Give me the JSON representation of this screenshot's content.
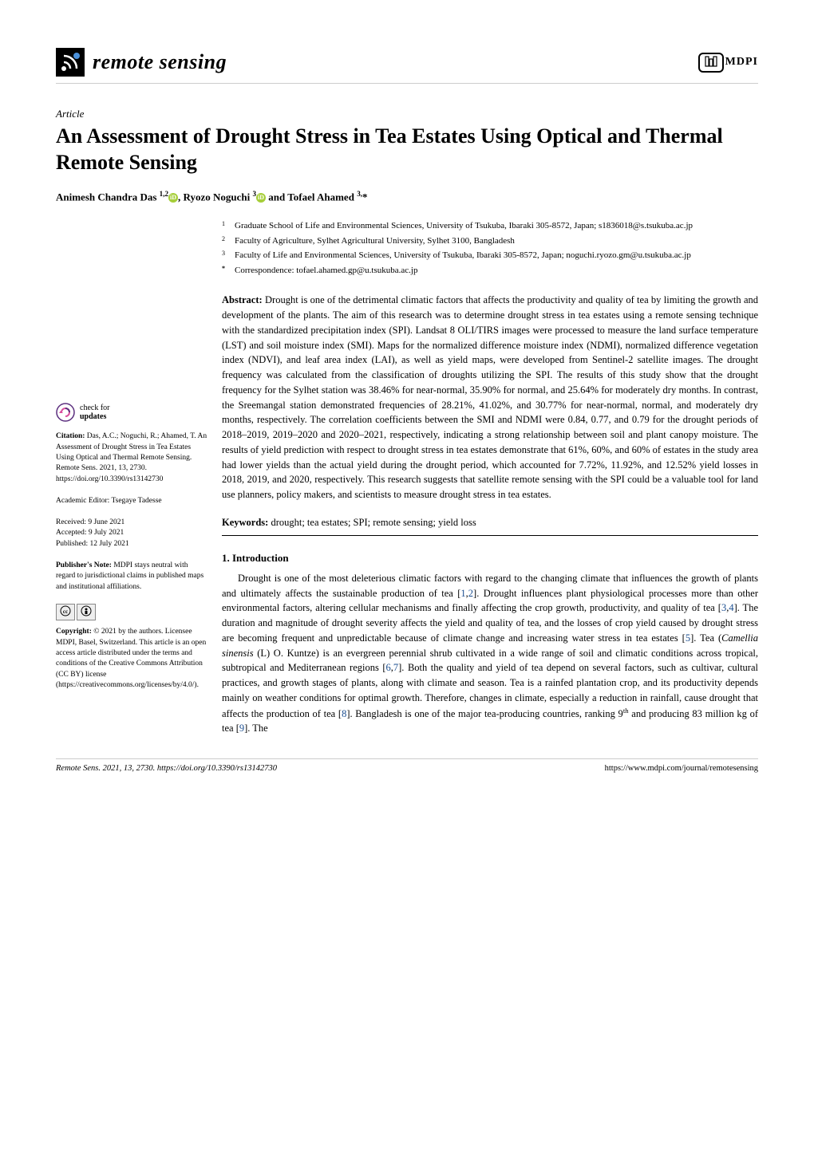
{
  "journal": {
    "name": "remote sensing",
    "publisher": "MDPI"
  },
  "article": {
    "type": "Article",
    "title": "An Assessment of Drought Stress in Tea Estates Using Optical and Thermal Remote Sensing",
    "authors_html": "Animesh Chandra Das <sup>1,2</sup><span class=\"orcid\">iD</span>, Ryozo Noguchi <sup>3</sup><span class=\"orcid\">iD</span> and Tofael Ahamed <sup>3,</sup>*"
  },
  "affiliations": [
    {
      "num": "1",
      "text": "Graduate School of Life and Environmental Sciences, University of Tsukuba, Ibaraki 305-8572, Japan; s1836018@s.tsukuba.ac.jp"
    },
    {
      "num": "2",
      "text": "Faculty of Agriculture, Sylhet Agricultural University, Sylhet 3100, Bangladesh"
    },
    {
      "num": "3",
      "text": "Faculty of Life and Environmental Sciences, University of Tsukuba, Ibaraki 305-8572, Japan; noguchi.ryozo.gm@u.tsukuba.ac.jp"
    },
    {
      "num": "*",
      "text": "Correspondence: tofael.ahamed.gp@u.tsukuba.ac.jp"
    }
  ],
  "abstract": {
    "label": "Abstract:",
    "text": "Drought is one of the detrimental climatic factors that affects the productivity and quality of tea by limiting the growth and development of the plants. The aim of this research was to determine drought stress in tea estates using a remote sensing technique with the standardized precipitation index (SPI). Landsat 8 OLI/TIRS images were processed to measure the land surface temperature (LST) and soil moisture index (SMI). Maps for the normalized difference moisture index (NDMI), normalized difference vegetation index (NDVI), and leaf area index (LAI), as well as yield maps, were developed from Sentinel-2 satellite images. The drought frequency was calculated from the classification of droughts utilizing the SPI. The results of this study show that the drought frequency for the Sylhet station was 38.46% for near-normal, 35.90% for normal, and 25.64% for moderately dry months. In contrast, the Sreemangal station demonstrated frequencies of 28.21%, 41.02%, and 30.77% for near-normal, normal, and moderately dry months, respectively. The correlation coefficients between the SMI and NDMI were 0.84, 0.77, and 0.79 for the drought periods of 2018–2019, 2019–2020 and 2020–2021, respectively, indicating a strong relationship between soil and plant canopy moisture. The results of yield prediction with respect to drought stress in tea estates demonstrate that 61%, 60%, and 60% of estates in the study area had lower yields than the actual yield during the drought period, which accounted for 7.72%, 11.92%, and 12.52% yield losses in 2018, 2019, and 2020, respectively. This research suggests that satellite remote sensing with the SPI could be a valuable tool for land use planners, policy makers, and scientists to measure drought stress in tea estates."
  },
  "keywords": {
    "label": "Keywords:",
    "text": "drought; tea estates; SPI; remote sensing; yield loss"
  },
  "section1": {
    "heading": "1. Introduction",
    "body_html": "Drought is one of the most deleterious climatic factors with regard to the changing climate that influences the growth of plants and ultimately affects the sustainable production of tea [<span class=\"ref-link\">1</span>,<span class=\"ref-link\">2</span>]. Drought influences plant physiological processes more than other environmental factors, altering cellular mechanisms and finally affecting the crop growth, productivity, and quality of tea [<span class=\"ref-link\">3</span>,<span class=\"ref-link\">4</span>]. The duration and magnitude of drought severity affects the yield and quality of tea, and the losses of crop yield caused by drought stress are becoming frequent and unpredictable because of climate change and increasing water stress in tea estates [<span class=\"ref-link\">5</span>]. Tea (<i>Camellia sinensis</i> (L) O. Kuntze) is an evergreen perennial shrub cultivated in a wide range of soil and climatic conditions across tropical, subtropical and Mediterranean regions [<span class=\"ref-link\">6</span>,<span class=\"ref-link\">7</span>]. Both the quality and yield of tea depend on several factors, such as cultivar, cultural practices, and growth stages of plants, along with climate and season. Tea is a rainfed plantation crop, and its productivity depends mainly on weather conditions for optimal growth. Therefore, changes in climate, especially a reduction in rainfall, cause drought that affects the production of tea [<span class=\"ref-link\">8</span>]. Bangladesh is one of the major tea-producing countries, ranking 9<sup>th</sup> and producing 83 million kg of tea [<span class=\"ref-link\">9</span>]. The"
  },
  "sidebar": {
    "check_updates": "check for updates",
    "citation_label": "Citation:",
    "citation": "Das, A.C.; Noguchi, R.; Ahamed, T. An Assessment of Drought Stress in Tea Estates Using Optical and Thermal Remote Sensing. Remote Sens. 2021, 13, 2730. https://doi.org/10.3390/rs13142730",
    "editor_label": "Academic Editor:",
    "editor": "Tsegaye Tadesse",
    "received": "Received: 9 June 2021",
    "accepted": "Accepted: 9 July 2021",
    "published": "Published: 12 July 2021",
    "publisher_note_label": "Publisher's Note:",
    "publisher_note": "MDPI stays neutral with regard to jurisdictional claims in published maps and institutional affiliations.",
    "copyright_label": "Copyright:",
    "copyright": "© 2021 by the authors. Licensee MDPI, Basel, Switzerland. This article is an open access article distributed under the terms and conditions of the Creative Commons Attribution (CC BY) license (https://creativecommons.org/licenses/by/4.0/)."
  },
  "footer": {
    "left": "Remote Sens. 2021, 13, 2730. https://doi.org/10.3390/rs13142730",
    "right": "https://www.mdpi.com/journal/remotesensing"
  },
  "colors": {
    "link": "#1a4d8f",
    "orcid": "#a6ce39"
  }
}
